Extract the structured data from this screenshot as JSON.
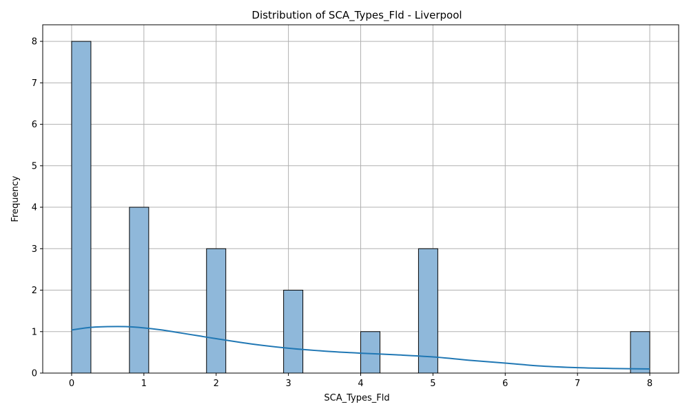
{
  "chart_data": {
    "type": "bar",
    "title": "Distribution of SCA_Types_Fld - Liverpool",
    "xlabel": "SCA_Types_Fld",
    "ylabel": "Frequency",
    "xlim": [
      -0.4,
      8.4
    ],
    "ylim": [
      0,
      8.4
    ],
    "xticks": [
      0,
      1,
      2,
      3,
      4,
      5,
      6,
      7,
      8
    ],
    "yticks": [
      0,
      1,
      2,
      3,
      4,
      5,
      6,
      7,
      8
    ],
    "grid": true,
    "bin_width": 0.2667,
    "bins": [
      {
        "x_start": 0.0,
        "value": 8
      },
      {
        "x_start": 0.8,
        "value": 4
      },
      {
        "x_start": 1.8667,
        "value": 3
      },
      {
        "x_start": 2.9333,
        "value": 2
      },
      {
        "x_start": 4.0,
        "value": 1
      },
      {
        "x_start": 4.8,
        "value": 3
      },
      {
        "x_start": 7.7333,
        "value": 1
      }
    ],
    "kde": {
      "x": [
        0,
        0.25,
        0.5,
        0.75,
        1.0,
        1.25,
        1.5,
        1.75,
        2.0,
        2.5,
        3.0,
        3.5,
        4.0,
        4.5,
        5.0,
        5.5,
        6.0,
        6.5,
        7.0,
        7.5,
        8.0
      ],
      "y": [
        1.04,
        1.1,
        1.12,
        1.12,
        1.09,
        1.04,
        0.97,
        0.9,
        0.83,
        0.7,
        0.6,
        0.53,
        0.48,
        0.44,
        0.39,
        0.31,
        0.24,
        0.17,
        0.13,
        0.11,
        0.1
      ]
    },
    "colors": {
      "bar_fill": "#8fb8da",
      "kde_line": "#1f77b4"
    }
  }
}
